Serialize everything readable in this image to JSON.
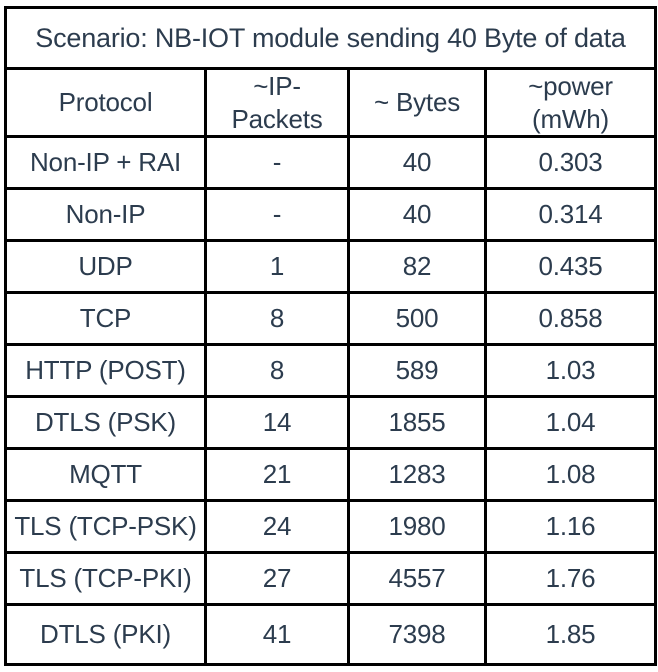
{
  "title": "Scenario: NB-IOT module sending 40 Byte of data",
  "colors": {
    "text": "#2c3c4e",
    "border": "#000000",
    "background": "#ffffff"
  },
  "table": {
    "headers": [
      "Protocol",
      "~IP-\nPackets",
      "~ Bytes",
      "~power\n(mWh)"
    ],
    "rows": [
      {
        "protocol": "Non-IP + RAI",
        "ip_packets": "-",
        "bytes": "40",
        "power_mwh": "0.303"
      },
      {
        "protocol": "Non-IP",
        "ip_packets": "-",
        "bytes": "40",
        "power_mwh": "0.314"
      },
      {
        "protocol": "UDP",
        "ip_packets": "1",
        "bytes": "82",
        "power_mwh": "0.435"
      },
      {
        "protocol": "TCP",
        "ip_packets": "8",
        "bytes": "500",
        "power_mwh": "0.858"
      },
      {
        "protocol": "HTTP (POST)",
        "ip_packets": "8",
        "bytes": "589",
        "power_mwh": "1.03"
      },
      {
        "protocol": "DTLS (PSK)",
        "ip_packets": "14",
        "bytes": "1855",
        "power_mwh": "1.04"
      },
      {
        "protocol": "MQTT",
        "ip_packets": "21",
        "bytes": "1283",
        "power_mwh": "1.08"
      },
      {
        "protocol": "TLS (TCP-PSK)",
        "ip_packets": "24",
        "bytes": "1980",
        "power_mwh": "1.16"
      },
      {
        "protocol": "TLS (TCP-PKI)",
        "ip_packets": "27",
        "bytes": "4557",
        "power_mwh": "1.76"
      },
      {
        "protocol": "DTLS (PKI)",
        "ip_packets": "41",
        "bytes": "7398",
        "power_mwh": "1.85"
      }
    ]
  },
  "chart_data": {
    "type": "table",
    "title": "Scenario: NB-IOT module sending 40 Byte of data",
    "columns": [
      "Protocol",
      "~IP-Packets",
      "~ Bytes",
      "~power (mWh)"
    ],
    "rows": [
      [
        "Non-IP + RAI",
        "-",
        40,
        0.303
      ],
      [
        "Non-IP",
        "-",
        40,
        0.314
      ],
      [
        "UDP",
        1,
        82,
        0.435
      ],
      [
        "TCP",
        8,
        500,
        0.858
      ],
      [
        "HTTP (POST)",
        8,
        589,
        1.03
      ],
      [
        "DTLS (PSK)",
        14,
        1855,
        1.04
      ],
      [
        "MQTT",
        21,
        1283,
        1.08
      ],
      [
        "TLS (TCP-PSK)",
        24,
        1980,
        1.16
      ],
      [
        "TLS (TCP-PKI)",
        27,
        4557,
        1.76
      ],
      [
        "DTLS (PKI)",
        41,
        7398,
        1.85
      ]
    ]
  }
}
